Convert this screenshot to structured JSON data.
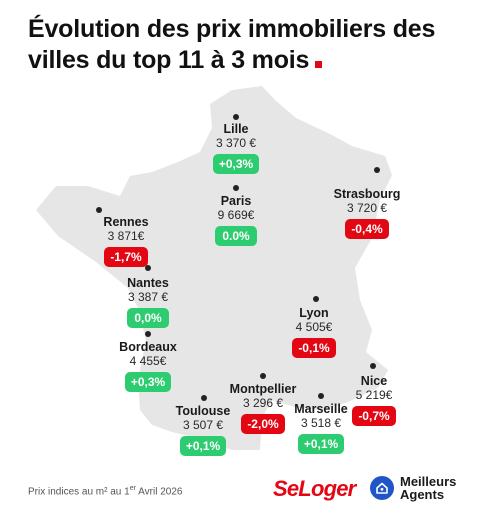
{
  "title": "Évolution des prix immobiliers des villes du top 11 à 3 mois",
  "cities": [
    {
      "name": "Lille",
      "price": "3 370 €",
      "change": "+0,3%",
      "trend": "up"
    },
    {
      "name": "Paris",
      "price": "9 669€",
      "change": "0.0%",
      "trend": "up"
    },
    {
      "name": "Strasbourg",
      "price": "3 720 €",
      "change": "-0,4%",
      "trend": "down"
    },
    {
      "name": "Rennes",
      "price": "3 871€",
      "change": "-1,7%",
      "trend": "down"
    },
    {
      "name": "Nantes",
      "price": "3 387 €",
      "change": "0,0%",
      "trend": "up"
    },
    {
      "name": "Lyon",
      "price": "4 505€",
      "change": "-0,1%",
      "trend": "down"
    },
    {
      "name": "Bordeaux",
      "price": "4 455€",
      "change": "+0,3%",
      "trend": "up"
    },
    {
      "name": "Montpellier",
      "price": "3 296 €",
      "change": "-2,0%",
      "trend": "down"
    },
    {
      "name": "Nice",
      "price": "5 219€",
      "change": "-0,7%",
      "trend": "down"
    },
    {
      "name": "Toulouse",
      "price": "3 507 €",
      "change": "+0,1%",
      "trend": "up"
    },
    {
      "name": "Marseille",
      "price": "3 518 €",
      "change": "+0,1%",
      "trend": "up"
    }
  ],
  "footer": {
    "note_prefix": "Prix indices au m² au 1",
    "note_sup": "er",
    "note_suffix": " Avril 2026"
  },
  "brands": {
    "seloger": "SeLoger",
    "meilleurs_line1": "Meilleurs",
    "meilleurs_line2": "Agents"
  },
  "colors": {
    "up": "#2ecc71",
    "down": "#e30613",
    "map": "#e6e6e6",
    "brand_red": "#e30613",
    "brand_blue": "#1f55c7"
  }
}
